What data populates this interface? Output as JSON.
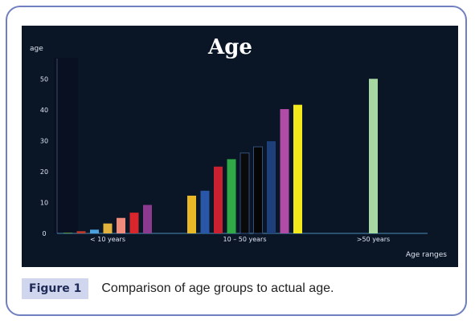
{
  "chart_data": {
    "type": "bar",
    "title": "Age",
    "ylabel": "age",
    "xlabel": "Age ranges",
    "ylim": [
      0,
      55
    ],
    "yticks": [
      0,
      10,
      20,
      30,
      40,
      50
    ],
    "groups": [
      {
        "label": "< 10 years",
        "values": [
          0.2,
          0.7,
          1.2,
          3.2,
          5.0,
          6.7,
          9.2
        ],
        "colors": [
          "#4a8a3a",
          "#c0392b",
          "#4aa3df",
          "#e3b23c",
          "#f08a7a",
          "#d9262c",
          "#8b3a8f"
        ]
      },
      {
        "label": "10 – 50 years",
        "values": [
          12.2,
          13.8,
          21.6,
          24.0,
          26.0,
          28.0,
          29.8,
          40.2,
          41.6
        ],
        "colors": [
          "#e8b827",
          "#2a56a8",
          "#c9212f",
          "#2faa46",
          "#0a0a0a",
          "#050505",
          "#1d3f7a",
          "#b04ba6",
          "#f4e91a"
        ]
      },
      {
        "label": ">50 years",
        "values": [
          50.0
        ],
        "colors": [
          "#a8d8a2"
        ]
      }
    ],
    "grid": false,
    "background": "#0a1526"
  },
  "caption": {
    "badge": "Figure 1",
    "text": "Comparison of age groups to actual age."
  }
}
